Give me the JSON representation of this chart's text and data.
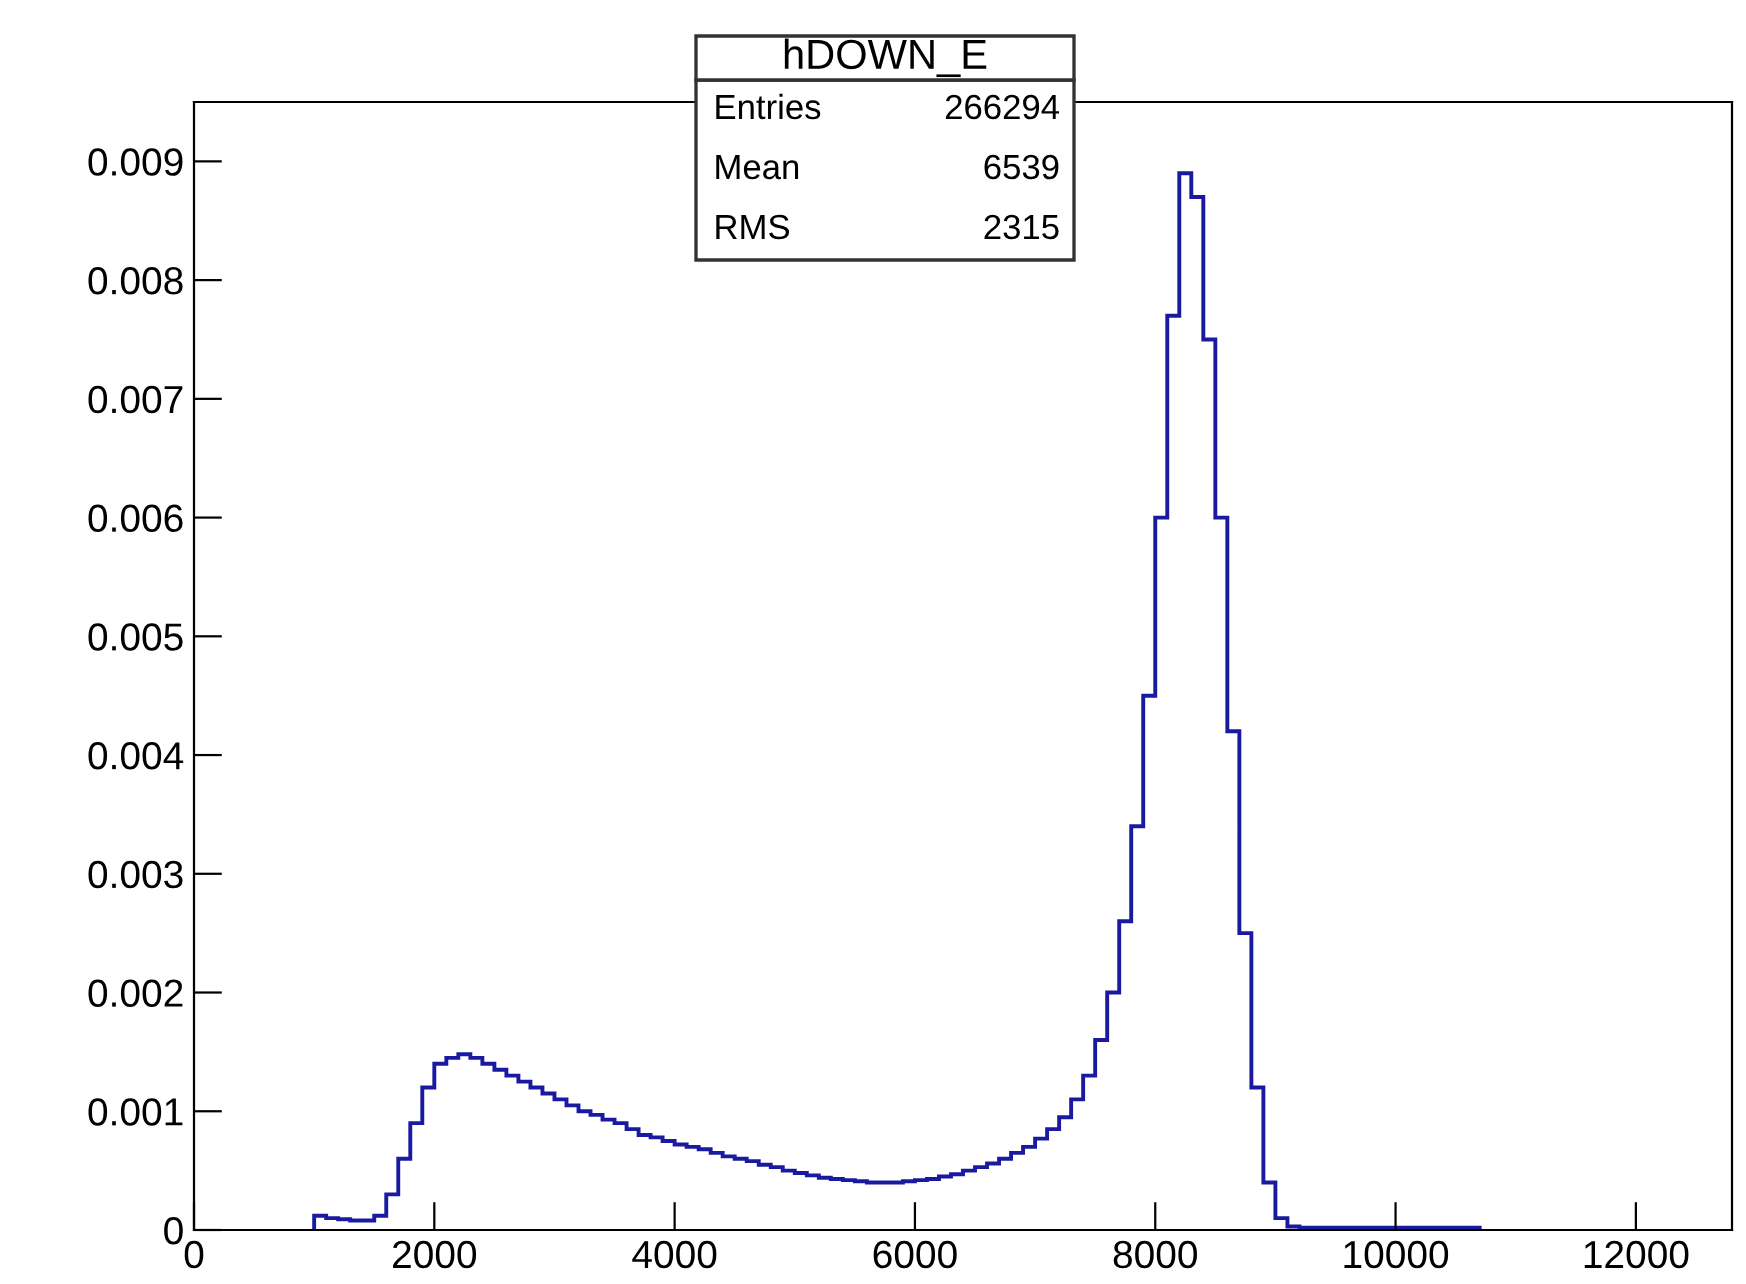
{
  "chart_data": {
    "type": "histogram",
    "title": "hDOWN_E",
    "annotations": [
      "Entries",
      "266294",
      "Mean",
      "6539",
      "RMS",
      "2315"
    ],
    "bins": [
      1000,
      1100,
      1200,
      1300,
      1400,
      1500,
      1600,
      1700,
      1800,
      1900,
      2000,
      2100,
      2200,
      2300,
      2400,
      2500,
      2600,
      2700,
      2800,
      2900,
      3000,
      3100,
      3200,
      3300,
      3400,
      3500,
      3600,
      3700,
      3800,
      3900,
      4000,
      4100,
      4200,
      4300,
      4400,
      4500,
      4600,
      4700,
      4800,
      4900,
      5000,
      5100,
      5200,
      5300,
      5400,
      5500,
      5600,
      5700,
      5800,
      5900,
      6000,
      6100,
      6200,
      6300,
      6400,
      6500,
      6600,
      6700,
      6800,
      6900,
      7000,
      7100,
      7200,
      7300,
      7400,
      7500,
      7600,
      7700,
      7800,
      7900,
      8000,
      8100,
      8200,
      8300,
      8400,
      8500,
      8600,
      8700,
      8800,
      8900,
      9000,
      9100,
      9200,
      9300,
      9400,
      9500,
      9600,
      9700,
      9800,
      9900,
      10000,
      10100,
      10200,
      10300,
      10400,
      10500,
      10600,
      10700
    ],
    "values": [
      0.00012,
      0.0001,
      9e-05,
      8e-05,
      8e-05,
      0.00012,
      0.0003,
      0.0006,
      0.0009,
      0.0012,
      0.0014,
      0.00145,
      0.00148,
      0.00145,
      0.0014,
      0.00135,
      0.0013,
      0.00125,
      0.0012,
      0.00115,
      0.0011,
      0.00105,
      0.001,
      0.00097,
      0.00093,
      0.0009,
      0.00085,
      0.0008,
      0.00078,
      0.00075,
      0.00072,
      0.0007,
      0.00068,
      0.00065,
      0.00062,
      0.0006,
      0.00058,
      0.00055,
      0.00053,
      0.0005,
      0.00048,
      0.00046,
      0.00044,
      0.00043,
      0.00042,
      0.00041,
      0.0004,
      0.0004,
      0.0004,
      0.00041,
      0.00042,
      0.00043,
      0.00045,
      0.00047,
      0.0005,
      0.00053,
      0.00056,
      0.0006,
      0.00065,
      0.0007,
      0.00077,
      0.00085,
      0.00095,
      0.0011,
      0.0013,
      0.0016,
      0.002,
      0.0026,
      0.0034,
      0.0045,
      0.006,
      0.0077,
      0.0089,
      0.0087,
      0.0075,
      0.006,
      0.0042,
      0.0025,
      0.0012,
      0.0004,
      0.0001,
      3e-05,
      2e-05,
      2e-05,
      2e-05,
      2e-05,
      2e-05,
      2e-05,
      2e-05,
      2e-05,
      2e-05,
      2e-05,
      2e-05,
      2e-05,
      2e-05,
      2e-05,
      2e-05
    ],
    "color": "#1a1aa0",
    "xlim": [
      0,
      12800
    ],
    "xticks": [
      0,
      2000,
      4000,
      6000,
      8000,
      10000,
      12000
    ],
    "ylim": [
      0,
      0.0095
    ],
    "yticks": [
      0,
      0.001,
      0.002,
      0.003,
      0.004,
      0.005,
      0.006,
      0.007,
      0.008,
      0.009
    ],
    "grid": false
  }
}
